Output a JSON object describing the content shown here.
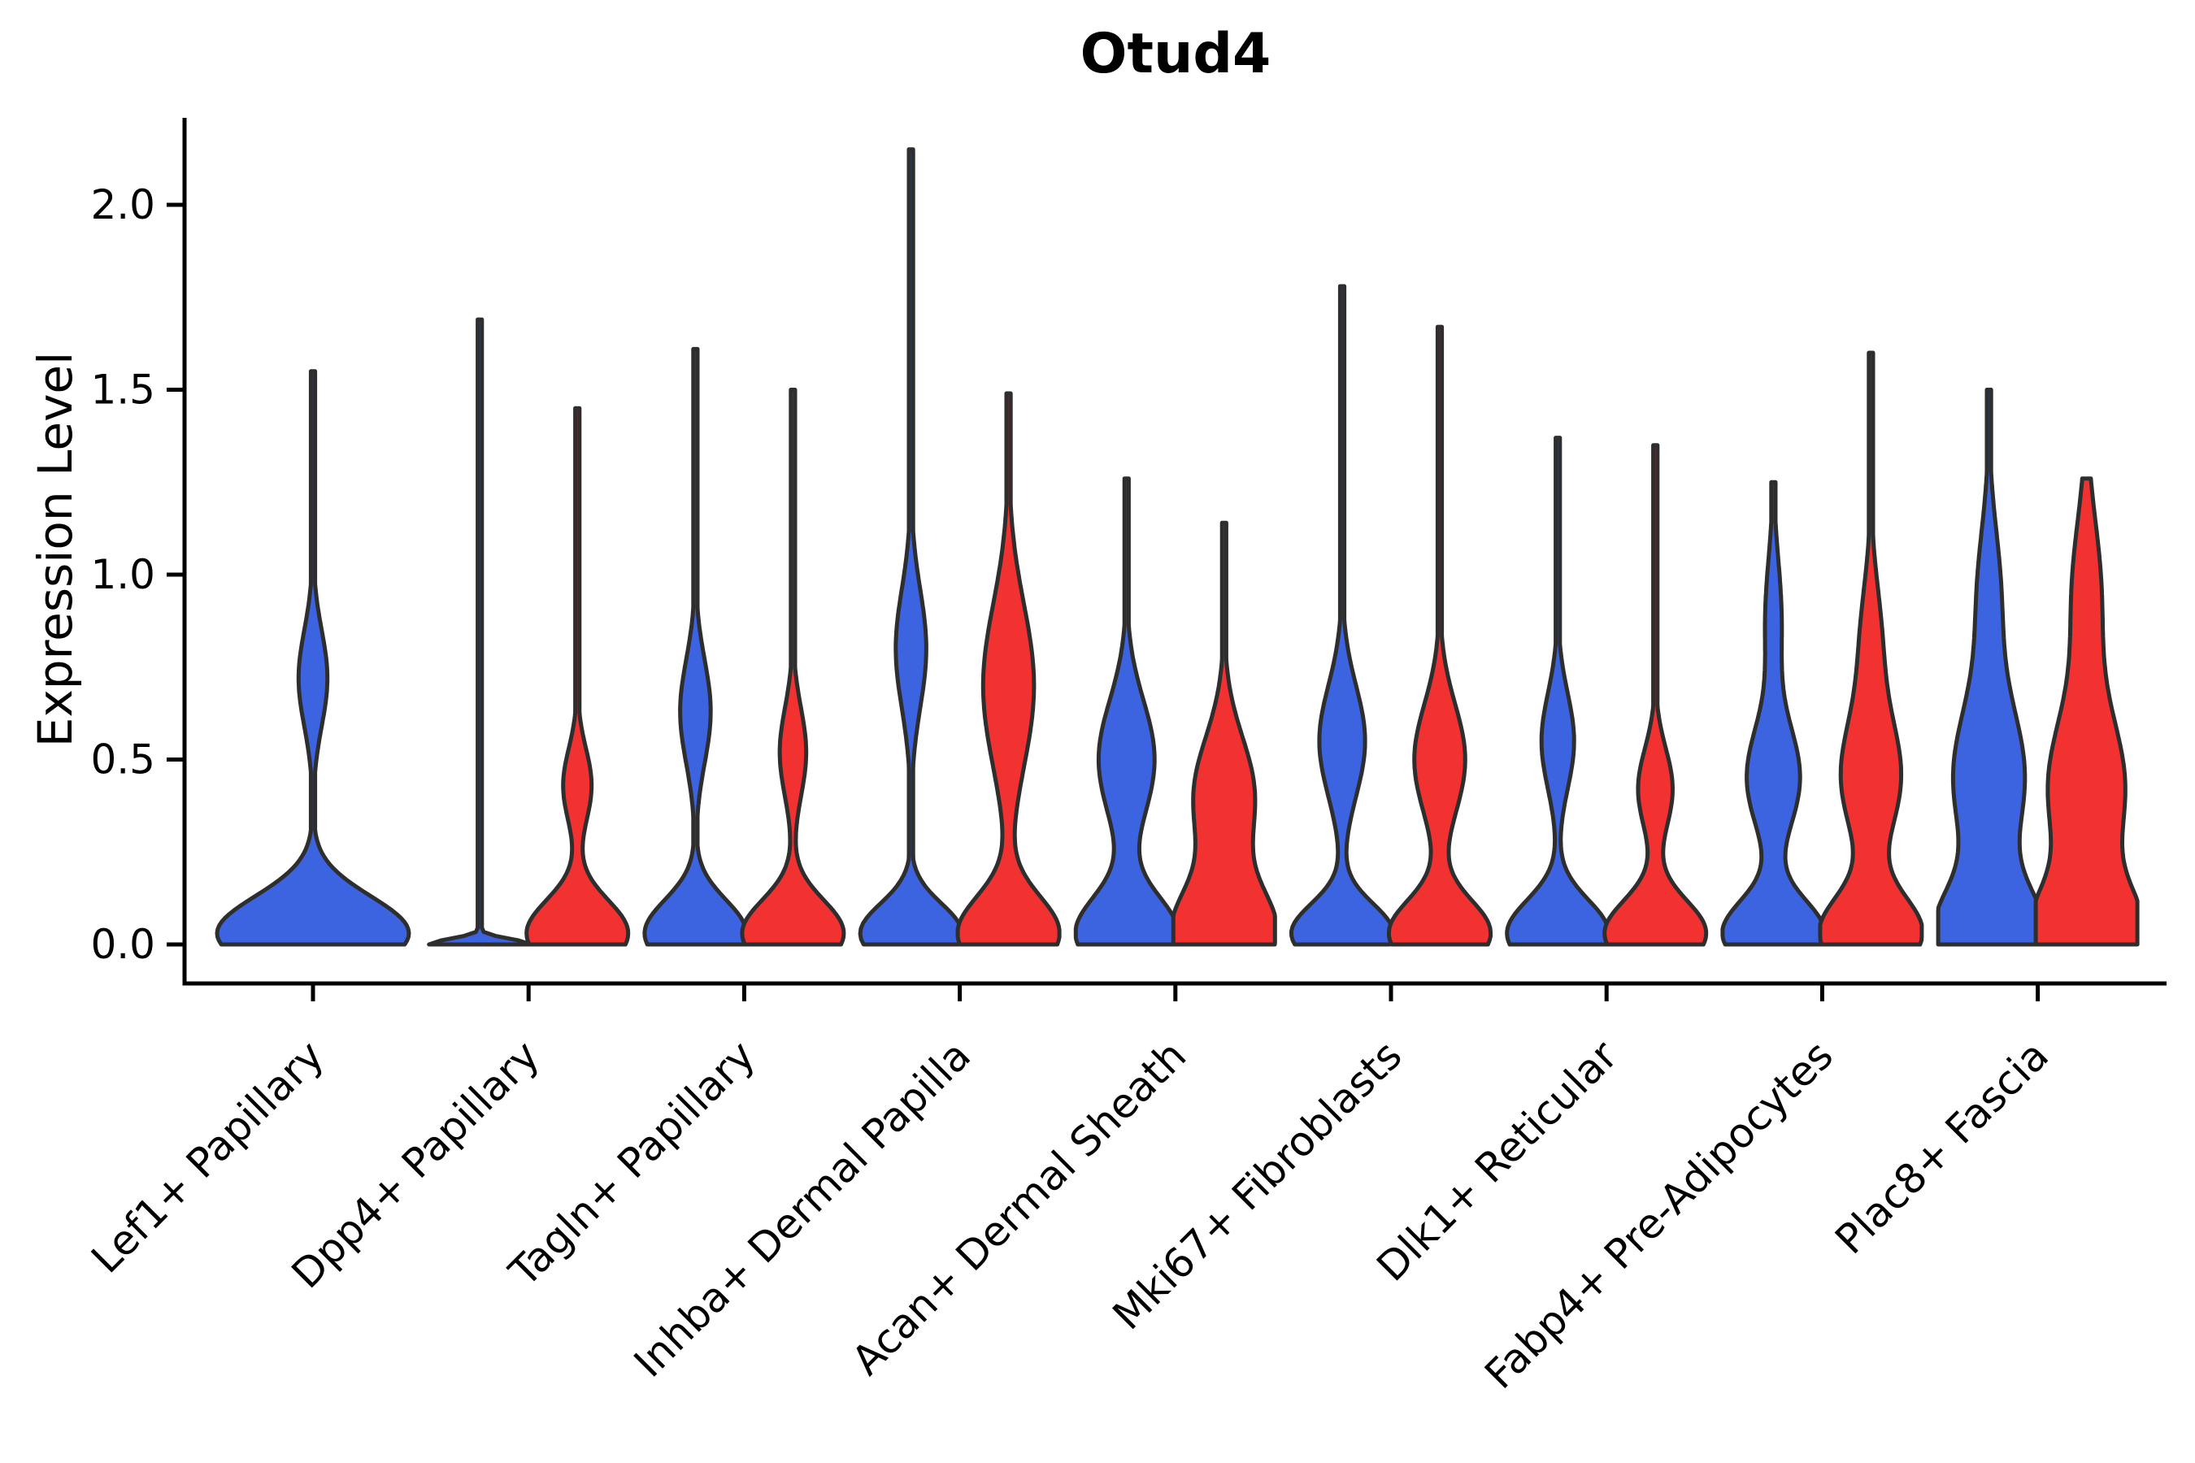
{
  "chart_data": {
    "type": "violin",
    "title": "Otud4",
    "ylabel": "Expression Level",
    "xlabel": "",
    "grid": false,
    "legend": "none",
    "ylim": [
      -0.1,
      2.24
    ],
    "yticks": [
      0.0,
      0.5,
      1.0,
      1.5,
      2.0
    ],
    "ytick_labels": [
      "0.0",
      "0.5",
      "1.0",
      "1.5",
      "2.0"
    ],
    "categories": [
      "Lef1+ Papillary",
      "Dpp4+ Papillary",
      "Tagln+ Papillary",
      "Inhba+ Dermal Papilla",
      "Acan+ Dermal Sheath",
      "Mki67+ Fibroblasts",
      "Dlk1+ Reticular",
      "Fabp4+ Pre-Adipocytes",
      "Plac8+ Fascia"
    ],
    "series": [
      {
        "name": "blue",
        "color": "#3D64E0"
      },
      {
        "name": "red",
        "color": "#F23131"
      }
    ],
    "edge_color": "#2e2e2e",
    "axis_color": "#000000",
    "violins": [
      {
        "category": 0,
        "series": "blue",
        "side": "center",
        "rel_width": 1.0,
        "max": 1.55,
        "components": [
          [
            0.03,
            0.1,
            1.0
          ],
          [
            0.72,
            0.13,
            0.15
          ]
        ]
      },
      {
        "category": 1,
        "series": "blue",
        "side": "left",
        "rel_width": 0.53,
        "max": 1.69,
        "components": [
          [
            0.0,
            0.015,
            1.0
          ]
        ]
      },
      {
        "category": 1,
        "series": "red",
        "side": "right",
        "rel_width": 0.53,
        "max": 1.45,
        "components": [
          [
            0.03,
            0.09,
            1.0
          ],
          [
            0.43,
            0.1,
            0.28
          ]
        ]
      },
      {
        "category": 2,
        "series": "blue",
        "side": "left",
        "rel_width": 0.53,
        "max": 1.61,
        "components": [
          [
            0.03,
            0.09,
            1.0
          ],
          [
            0.63,
            0.14,
            0.3
          ]
        ]
      },
      {
        "category": 2,
        "series": "red",
        "side": "right",
        "rel_width": 0.53,
        "max": 1.5,
        "components": [
          [
            0.03,
            0.09,
            1.0
          ],
          [
            0.52,
            0.12,
            0.26
          ]
        ]
      },
      {
        "category": 3,
        "series": "blue",
        "side": "left",
        "rel_width": 0.53,
        "max": 2.15,
        "components": [
          [
            0.03,
            0.08,
            1.0
          ],
          [
            0.8,
            0.16,
            0.3
          ]
        ]
      },
      {
        "category": 3,
        "series": "red",
        "side": "right",
        "rel_width": 0.53,
        "max": 1.49,
        "components": [
          [
            0.03,
            0.1,
            1.0
          ],
          [
            0.7,
            0.22,
            0.5
          ]
        ]
      },
      {
        "category": 4,
        "series": "blue",
        "side": "left",
        "rel_width": 0.53,
        "max": 1.26,
        "components": [
          [
            0.03,
            0.1,
            1.0
          ],
          [
            0.5,
            0.16,
            0.55
          ]
        ]
      },
      {
        "category": 4,
        "series": "red",
        "side": "right",
        "rel_width": 0.53,
        "max": 1.14,
        "components": [
          [
            0.03,
            0.12,
            1.0
          ],
          [
            0.4,
            0.16,
            0.6
          ]
        ]
      },
      {
        "category": 5,
        "series": "blue",
        "side": "left",
        "rel_width": 0.53,
        "max": 1.78,
        "components": [
          [
            0.03,
            0.08,
            1.0
          ],
          [
            0.55,
            0.15,
            0.45
          ]
        ]
      },
      {
        "category": 5,
        "series": "red",
        "side": "right",
        "rel_width": 0.53,
        "max": 1.67,
        "components": [
          [
            0.03,
            0.09,
            1.0
          ],
          [
            0.5,
            0.15,
            0.5
          ]
        ]
      },
      {
        "category": 6,
        "series": "blue",
        "side": "left",
        "rel_width": 0.53,
        "max": 1.37,
        "components": [
          [
            0.03,
            0.09,
            1.0
          ],
          [
            0.55,
            0.13,
            0.32
          ]
        ]
      },
      {
        "category": 6,
        "series": "red",
        "side": "right",
        "rel_width": 0.53,
        "max": 1.35,
        "components": [
          [
            0.03,
            0.09,
            1.0
          ],
          [
            0.42,
            0.11,
            0.34
          ]
        ]
      },
      {
        "category": 7,
        "series": "blue",
        "side": "left",
        "rel_width": 0.53,
        "max": 1.25,
        "components": [
          [
            0.03,
            0.09,
            1.0
          ],
          [
            0.45,
            0.14,
            0.52
          ],
          [
            0.88,
            0.16,
            0.16
          ]
        ]
      },
      {
        "category": 7,
        "series": "red",
        "side": "right",
        "rel_width": 0.53,
        "max": 1.6,
        "components": [
          [
            0.03,
            0.1,
            1.0
          ],
          [
            0.45,
            0.16,
            0.58
          ],
          [
            0.82,
            0.16,
            0.2
          ]
        ]
      },
      {
        "category": 8,
        "series": "blue",
        "side": "left",
        "rel_width": 0.53,
        "max": 1.5,
        "components": [
          [
            0.03,
            0.12,
            1.0
          ],
          [
            0.45,
            0.2,
            0.7
          ],
          [
            0.95,
            0.18,
            0.22
          ]
        ]
      },
      {
        "category": 8,
        "series": "red",
        "side": "right",
        "rel_width": 0.53,
        "max": 1.26,
        "components": [
          [
            0.03,
            0.12,
            1.0
          ],
          [
            0.42,
            0.2,
            0.75
          ],
          [
            0.95,
            0.2,
            0.28
          ]
        ]
      }
    ]
  }
}
